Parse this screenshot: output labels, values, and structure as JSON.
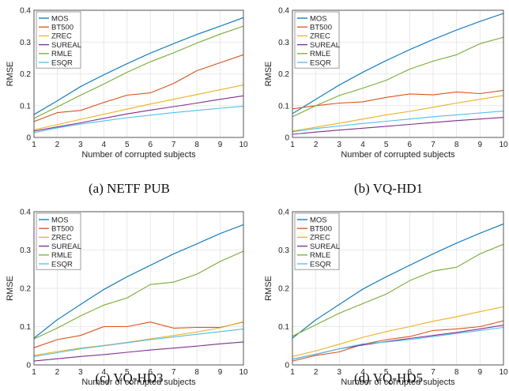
{
  "series_colors": {
    "MOS": "#0072BD",
    "BT500": "#D95319",
    "ZREC": "#EDB120",
    "SUREAL": "#7E2F8E",
    "RMLE": "#77AC30",
    "ESQR": "#4DBEEE"
  },
  "chart_data": [
    {
      "type": "line",
      "caption": "(a) NETF PUB",
      "xlabel": "Number of corrupted subjects",
      "ylabel": "RMSE",
      "x": [
        1,
        2,
        3,
        4,
        5,
        6,
        7,
        8,
        9,
        10
      ],
      "xlim": [
        1,
        10
      ],
      "ylim": [
        0,
        0.4
      ],
      "yticks": [
        "0",
        "0.1",
        "0.2",
        "0.3",
        "0.4"
      ],
      "grid": true,
      "legend": "top-left",
      "series": [
        {
          "name": "MOS",
          "values": [
            0.072,
            0.115,
            0.16,
            0.197,
            0.232,
            0.265,
            0.295,
            0.324,
            0.35,
            0.377
          ]
        },
        {
          "name": "BT500",
          "values": [
            0.05,
            0.078,
            0.085,
            0.11,
            0.133,
            0.14,
            0.17,
            0.21,
            0.235,
            0.26
          ]
        },
        {
          "name": "ZREC",
          "values": [
            0.024,
            0.04,
            0.057,
            0.073,
            0.089,
            0.105,
            0.12,
            0.135,
            0.15,
            0.165
          ]
        },
        {
          "name": "SUREAL",
          "values": [
            0.02,
            0.033,
            0.046,
            0.06,
            0.074,
            0.086,
            0.097,
            0.108,
            0.12,
            0.131
          ]
        },
        {
          "name": "RMLE",
          "values": [
            0.06,
            0.096,
            0.133,
            0.168,
            0.205,
            0.238,
            0.266,
            0.297,
            0.325,
            0.35
          ]
        },
        {
          "name": "ESQR",
          "values": [
            0.015,
            0.03,
            0.042,
            0.052,
            0.062,
            0.07,
            0.078,
            0.085,
            0.092,
            0.098
          ]
        }
      ]
    },
    {
      "type": "line",
      "caption": "(b) VQ-HD1",
      "xlabel": "Number of corrupted subjects",
      "ylabel": "RMSE",
      "x": [
        1,
        2,
        3,
        4,
        5,
        6,
        7,
        8,
        9,
        10
      ],
      "xlim": [
        1,
        10
      ],
      "ylim": [
        0,
        0.4
      ],
      "yticks": [
        "0",
        "0.1",
        "0.2",
        "0.3",
        "0.4"
      ],
      "grid": true,
      "legend": "top-left",
      "series": [
        {
          "name": "MOS",
          "values": [
            0.075,
            0.12,
            0.165,
            0.205,
            0.242,
            0.276,
            0.308,
            0.338,
            0.365,
            0.39
          ]
        },
        {
          "name": "BT500",
          "values": [
            0.09,
            0.1,
            0.108,
            0.112,
            0.126,
            0.137,
            0.134,
            0.143,
            0.138,
            0.148
          ]
        },
        {
          "name": "ZREC",
          "values": [
            0.02,
            0.032,
            0.045,
            0.058,
            0.071,
            0.082,
            0.095,
            0.108,
            0.12,
            0.132
          ]
        },
        {
          "name": "SUREAL",
          "values": [
            0.01,
            0.017,
            0.023,
            0.029,
            0.035,
            0.041,
            0.047,
            0.053,
            0.058,
            0.063
          ]
        },
        {
          "name": "RMLE",
          "values": [
            0.065,
            0.1,
            0.132,
            0.155,
            0.18,
            0.215,
            0.24,
            0.26,
            0.295,
            0.315
          ]
        },
        {
          "name": "ESQR",
          "values": [
            0.018,
            0.028,
            0.036,
            0.044,
            0.051,
            0.058,
            0.065,
            0.071,
            0.077,
            0.083
          ]
        }
      ]
    },
    {
      "type": "line",
      "caption": "(c) VQ-HD3",
      "xlabel": "Number of corrupted subjects",
      "ylabel": "RMSE",
      "x": [
        1,
        2,
        3,
        4,
        5,
        6,
        7,
        8,
        9,
        10
      ],
      "xlim": [
        1,
        10
      ],
      "ylim": [
        0,
        0.4
      ],
      "yticks": [
        "0",
        "0.1",
        "0.2",
        "0.3",
        "0.4"
      ],
      "grid": true,
      "legend": "top-left",
      "series": [
        {
          "name": "MOS",
          "values": [
            0.07,
            0.118,
            0.158,
            0.197,
            0.23,
            0.26,
            0.29,
            0.316,
            0.343,
            0.366
          ]
        },
        {
          "name": "BT500",
          "values": [
            0.045,
            0.066,
            0.077,
            0.1,
            0.1,
            0.112,
            0.096,
            0.098,
            0.098,
            0.112
          ]
        },
        {
          "name": "ZREC",
          "values": [
            0.025,
            0.035,
            0.044,
            0.051,
            0.059,
            0.068,
            0.077,
            0.086,
            0.097,
            0.113
          ]
        },
        {
          "name": "SUREAL",
          "values": [
            0.01,
            0.016,
            0.022,
            0.027,
            0.033,
            0.039,
            0.044,
            0.049,
            0.055,
            0.06
          ]
        },
        {
          "name": "RMLE",
          "values": [
            0.068,
            0.096,
            0.128,
            0.156,
            0.175,
            0.21,
            0.216,
            0.237,
            0.27,
            0.297
          ]
        },
        {
          "name": "ESQR",
          "values": [
            0.022,
            0.032,
            0.042,
            0.05,
            0.058,
            0.066,
            0.073,
            0.08,
            0.087,
            0.094
          ]
        }
      ]
    },
    {
      "type": "line",
      "caption": "(d) VQ-HD5",
      "xlabel": "Number of corrupted subjects",
      "ylabel": "RMSE",
      "x": [
        1,
        2,
        3,
        4,
        5,
        6,
        7,
        8,
        9,
        10
      ],
      "xlim": [
        1,
        10
      ],
      "ylim": [
        0,
        0.4
      ],
      "yticks": [
        "0",
        "0.1",
        "0.2",
        "0.3",
        "0.4"
      ],
      "grid": true,
      "legend": "top-left",
      "series": [
        {
          "name": "MOS",
          "values": [
            0.07,
            0.118,
            0.158,
            0.198,
            0.23,
            0.26,
            0.29,
            0.318,
            0.344,
            0.368
          ]
        },
        {
          "name": "BT500",
          "values": [
            0.01,
            0.025,
            0.034,
            0.054,
            0.066,
            0.074,
            0.09,
            0.094,
            0.1,
            0.115
          ]
        },
        {
          "name": "ZREC",
          "values": [
            0.022,
            0.037,
            0.054,
            0.072,
            0.087,
            0.1,
            0.114,
            0.126,
            0.139,
            0.152
          ]
        },
        {
          "name": "SUREAL",
          "values": [
            0.015,
            0.028,
            0.042,
            0.052,
            0.061,
            0.069,
            0.077,
            0.085,
            0.094,
            0.104
          ]
        },
        {
          "name": "RMLE",
          "values": [
            0.075,
            0.105,
            0.135,
            0.16,
            0.185,
            0.22,
            0.245,
            0.255,
            0.29,
            0.315
          ]
        },
        {
          "name": "ESQR",
          "values": [
            0.015,
            0.028,
            0.042,
            0.055,
            0.06,
            0.066,
            0.074,
            0.082,
            0.09,
            0.098
          ]
        }
      ]
    }
  ]
}
